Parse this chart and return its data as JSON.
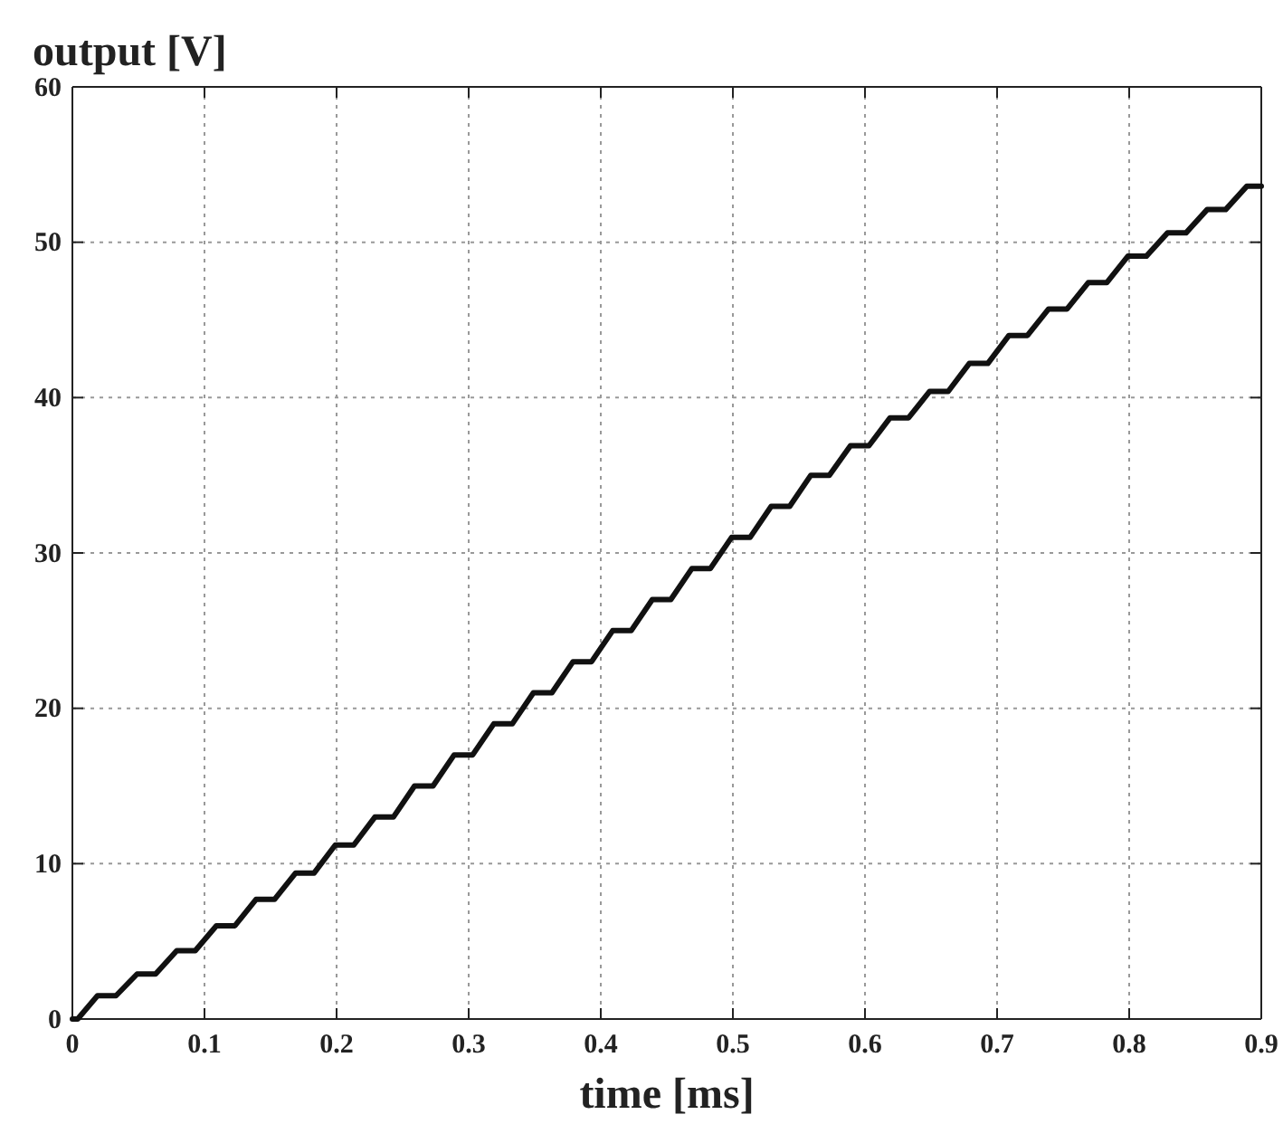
{
  "chart_data": {
    "type": "line",
    "title": "output [V]",
    "xlabel": "time [ms]",
    "xlim": [
      0,
      0.9
    ],
    "ylim": [
      0,
      60
    ],
    "xticks": [
      0,
      0.1,
      0.2,
      0.3,
      0.4,
      0.5,
      0.6,
      0.7,
      0.8,
      0.9
    ],
    "yticks": [
      0,
      10,
      20,
      30,
      40,
      50,
      60
    ],
    "grid": true,
    "marker": "none",
    "line_style": "solid",
    "series": [
      {
        "color": "#111111",
        "x": [
          0,
          0.004,
          0.019,
          0.033,
          0.049,
          0.063,
          0.079,
          0.093,
          0.109,
          0.123,
          0.139,
          0.153,
          0.169,
          0.183,
          0.199,
          0.213,
          0.229,
          0.243,
          0.259,
          0.273,
          0.289,
          0.303,
          0.319,
          0.333,
          0.349,
          0.363,
          0.379,
          0.393,
          0.409,
          0.423,
          0.439,
          0.453,
          0.469,
          0.483,
          0.499,
          0.513,
          0.529,
          0.543,
          0.559,
          0.573,
          0.589,
          0.603,
          0.619,
          0.633,
          0.649,
          0.663,
          0.679,
          0.693,
          0.709,
          0.723,
          0.739,
          0.753,
          0.769,
          0.783,
          0.799,
          0.813,
          0.829,
          0.843,
          0.859,
          0.873,
          0.889,
          0.9
        ],
        "values": [
          0,
          0,
          1.5,
          1.5,
          2.9,
          2.9,
          4.4,
          4.4,
          6.0,
          6.0,
          7.7,
          7.7,
          9.4,
          9.4,
          11.2,
          11.2,
          13,
          13,
          15,
          15,
          17,
          17,
          19,
          19,
          21,
          21,
          23,
          23,
          25,
          25,
          27,
          27,
          29,
          29,
          31,
          31,
          33,
          33,
          35,
          35,
          36.9,
          36.9,
          38.7,
          38.7,
          40.4,
          40.4,
          42.2,
          42.2,
          44,
          44,
          45.7,
          45.7,
          47.4,
          47.4,
          49.1,
          49.1,
          50.6,
          50.6,
          52.1,
          52.1,
          53.6,
          53.6
        ]
      }
    ]
  }
}
